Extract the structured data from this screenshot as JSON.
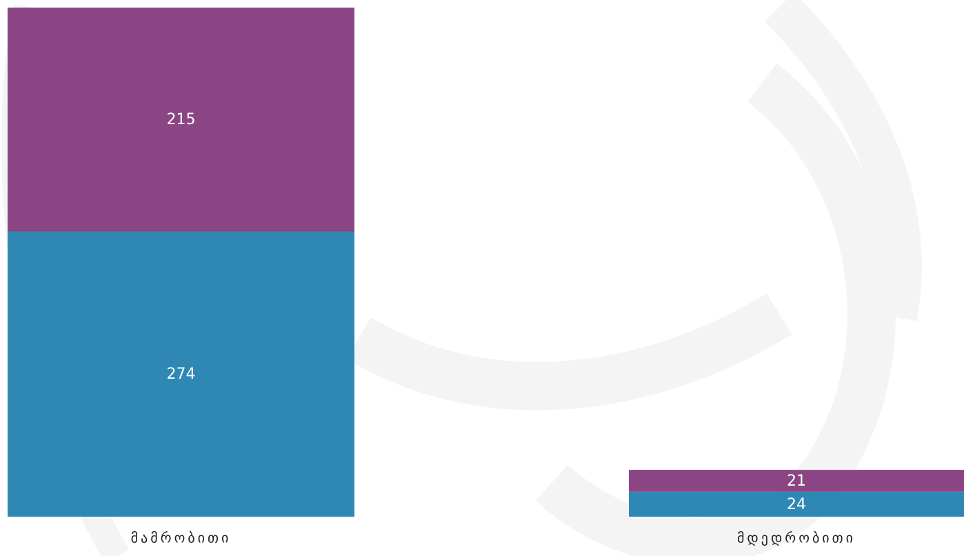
{
  "chart_data": {
    "type": "bar",
    "stacked": true,
    "categories": [
      "მამრობითი",
      "მდედრობითი"
    ],
    "series": [
      {
        "values": [
          274,
          24
        ],
        "color": "#2f88b4"
      },
      {
        "values": [
          215,
          21
        ],
        "color": "#8b4584"
      }
    ],
    "ylim": [
      0,
      489
    ],
    "grid": false,
    "legend": "none"
  }
}
